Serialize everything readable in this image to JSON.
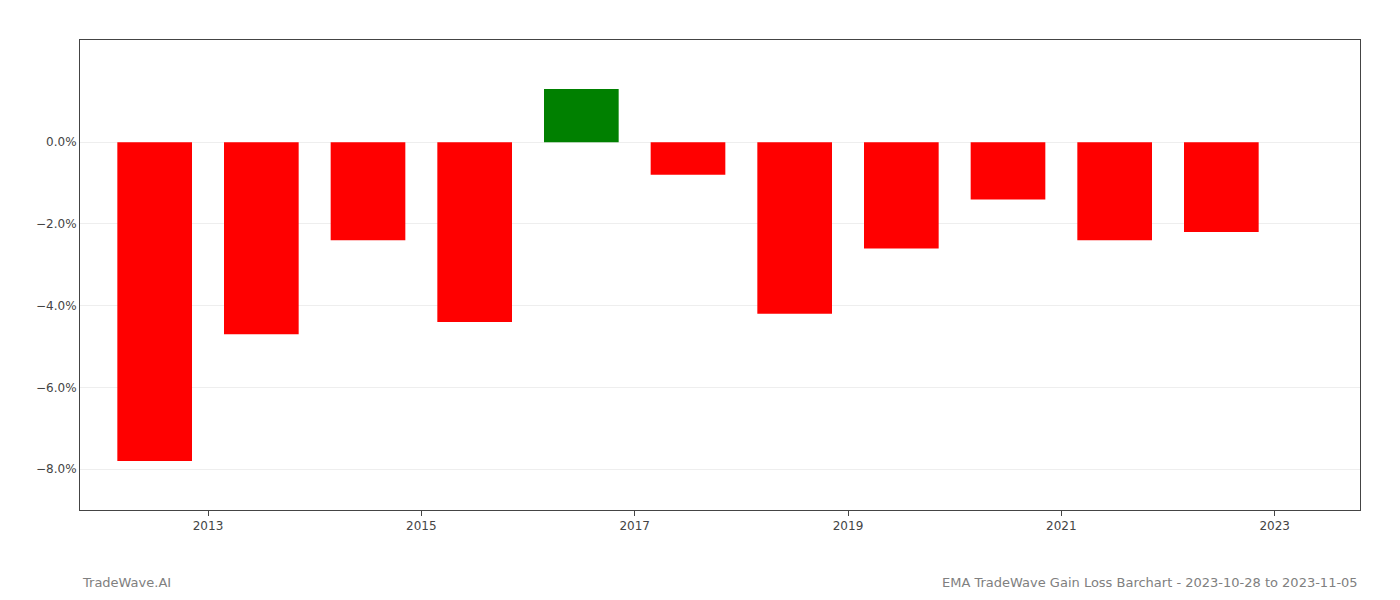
{
  "chart_data": {
    "type": "bar",
    "x": [
      2012.5,
      2013.5,
      2014.5,
      2015.5,
      2016.5,
      2017.5,
      2018.5,
      2019.5,
      2020.5,
      2021.5,
      2022.5
    ],
    "values": [
      -0.078,
      -0.047,
      -0.024,
      -0.044,
      0.013,
      -0.008,
      -0.042,
      -0.026,
      -0.014,
      -0.024,
      -0.022
    ],
    "colors": [
      "#ff0000",
      "#ff0000",
      "#ff0000",
      "#ff0000",
      "#008000",
      "#ff0000",
      "#ff0000",
      "#ff0000",
      "#ff0000",
      "#ff0000",
      "#ff0000"
    ],
    "xlim": [
      2011.8,
      2023.8
    ],
    "xticks": [
      2013,
      2015,
      2017,
      2019,
      2021,
      2023
    ],
    "ylim": [
      -0.09,
      0.025
    ],
    "yticks": [
      {
        "value": -0.08,
        "label": "−8.0%"
      },
      {
        "value": -0.06,
        "label": "−6.0%"
      },
      {
        "value": -0.04,
        "label": "−4.0%"
      },
      {
        "value": -0.02,
        "label": "−2.0%"
      },
      {
        "value": 0.0,
        "label": "0.0%"
      }
    ],
    "grid": true,
    "annotations": [
      "TradeWave.AI",
      "EMA TradeWave Gain Loss Barchart - 2023-10-28 to 2023-11-05"
    ]
  }
}
